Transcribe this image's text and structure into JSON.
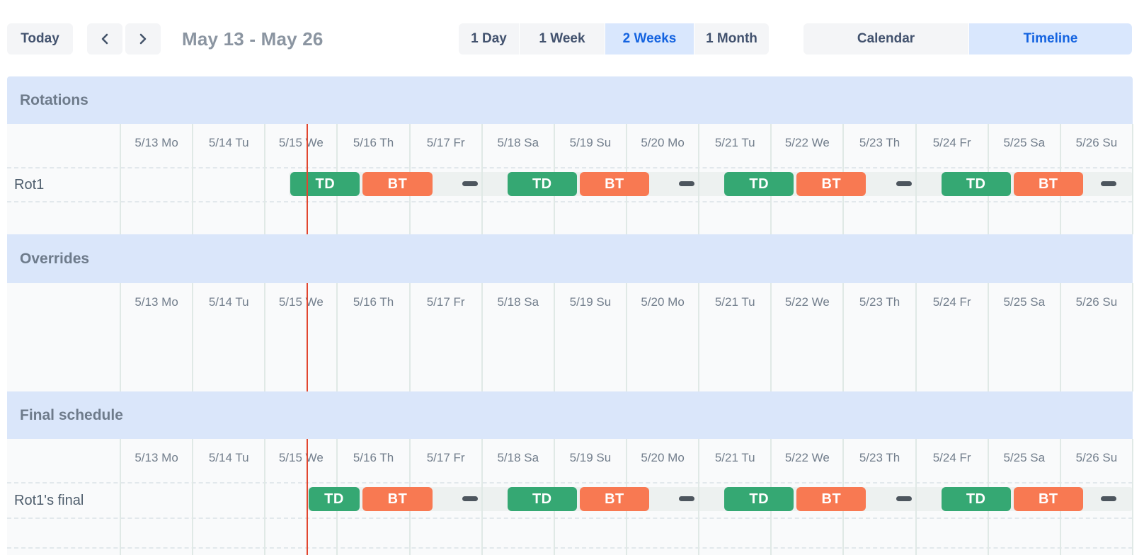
{
  "toolbar": {
    "today_label": "Today",
    "title": "May 13 - May 26",
    "views": [
      {
        "label": "1 Day",
        "selected": false
      },
      {
        "label": "1 Week",
        "selected": false
      },
      {
        "label": "2 Weeks",
        "selected": true
      },
      {
        "label": "1 Month",
        "selected": false
      }
    ],
    "modes": [
      {
        "label": "Calendar",
        "selected": false
      },
      {
        "label": "Timeline",
        "selected": true
      }
    ]
  },
  "days": [
    "5/13 Mo",
    "5/14 Tu",
    "5/15 We",
    "5/16 Th",
    "5/17 Fr",
    "5/18 Sa",
    "5/19 Su",
    "5/20 Mo",
    "5/21 Tu",
    "5/22 We",
    "5/23 Th",
    "5/24 Fr",
    "5/25 Sa",
    "5/26 Su"
  ],
  "sections": [
    {
      "title": "Rotations",
      "rows": [
        {
          "label": "Rot1",
          "schedule": "rotation"
        }
      ]
    },
    {
      "title": "Overrides",
      "rows": []
    },
    {
      "title": "Final schedule",
      "rows": [
        {
          "label": "Rot1's final",
          "schedule": "final"
        }
      ]
    }
  ],
  "schedules": {
    "rotation": {
      "strip_start": 2.333,
      "shifts": [
        {
          "label": "TD",
          "color_key": "shift_td",
          "start": 2.333,
          "end": 3.333
        },
        {
          "label": "BT",
          "color_key": "shift_bt",
          "start": 3.333,
          "end": 4.333
        },
        {
          "label": "TD",
          "color_key": "shift_td",
          "start": 5.333,
          "end": 6.333
        },
        {
          "label": "BT",
          "color_key": "shift_bt",
          "start": 6.333,
          "end": 7.333
        },
        {
          "label": "TD",
          "color_key": "shift_td",
          "start": 8.333,
          "end": 9.333
        },
        {
          "label": "BT",
          "color_key": "shift_bt",
          "start": 9.333,
          "end": 10.333
        },
        {
          "label": "TD",
          "color_key": "shift_td",
          "start": 11.333,
          "end": 12.333
        },
        {
          "label": "BT",
          "color_key": "shift_bt",
          "start": 12.333,
          "end": 13.333
        }
      ],
      "gaps": [
        [
          4.333,
          5.333
        ],
        [
          7.333,
          8.333
        ],
        [
          10.333,
          11.333
        ],
        [
          13.333,
          14
        ]
      ]
    },
    "final": {
      "strip_start": 2.58,
      "shifts": [
        {
          "label": "TD",
          "color_key": "shift_td",
          "start": 2.58,
          "end": 3.333
        },
        {
          "label": "BT",
          "color_key": "shift_bt",
          "start": 3.333,
          "end": 4.333
        },
        {
          "label": "TD",
          "color_key": "shift_td",
          "start": 5.333,
          "end": 6.333
        },
        {
          "label": "BT",
          "color_key": "shift_bt",
          "start": 6.333,
          "end": 7.333
        },
        {
          "label": "TD",
          "color_key": "shift_td",
          "start": 8.333,
          "end": 9.333
        },
        {
          "label": "BT",
          "color_key": "shift_bt",
          "start": 9.333,
          "end": 10.333
        },
        {
          "label": "TD",
          "color_key": "shift_td",
          "start": 11.333,
          "end": 12.333
        },
        {
          "label": "BT",
          "color_key": "shift_bt",
          "start": 12.333,
          "end": 13.333
        }
      ],
      "gaps": [
        [
          4.333,
          5.333
        ],
        [
          7.333,
          8.333
        ],
        [
          10.333,
          11.333
        ],
        [
          13.333,
          14
        ]
      ]
    }
  },
  "now_day": 2.58,
  "colors": {
    "shift_td": "#35a873",
    "shift_bt": "#f87952",
    "gap_dash": "#4d565e",
    "now_line": "#e2462f",
    "band_bg": "#dae6fa",
    "selected_bg": "#d9e7fd",
    "selected_text": "#1463e0"
  }
}
